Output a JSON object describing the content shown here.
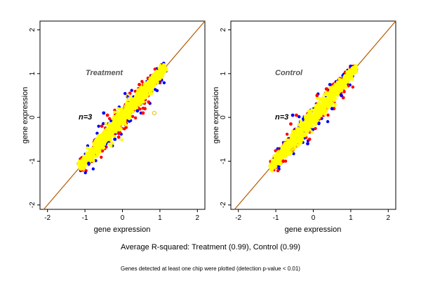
{
  "colors": {
    "background": "#ffffff",
    "diagonal": "#b35900",
    "red": "#ff0000",
    "blue": "#0000ff",
    "yellow": "#ffff00",
    "yellow_outline": "#e6c200"
  },
  "caption": "Average R-squared: Treatment (0.99), Control (0.99)",
  "footnote": "Genes detected at least one chip were plotted (detection p-value < 0.01)",
  "chart_data": [
    {
      "type": "scatter",
      "title": "Treatment",
      "annotation": "n=3",
      "xlabel": "gene expression",
      "ylabel": "gene expression",
      "xlim": [
        -2.2,
        2.2
      ],
      "ylim": [
        -2.1,
        2.2
      ],
      "xticks": [
        -2,
        -1,
        0,
        1,
        2
      ],
      "yticks": [
        -2,
        -1,
        0,
        1,
        2
      ],
      "reference_line": "y = x",
      "point_cloud": {
        "x_range": [
          -1.15,
          1.15
        ],
        "spread_sd": 0.14,
        "outlier_colors": [
          "red",
          "blue"
        ],
        "main_color": "yellow"
      },
      "series": [
        {
          "color": "yellow",
          "points": [
            [
              -1.1,
              -1.12
            ],
            [
              -0.9,
              -0.85
            ],
            [
              -0.6,
              -0.62
            ],
            [
              -0.3,
              -0.28
            ],
            [
              0,
              0.02
            ],
            [
              0.3,
              0.31
            ],
            [
              0.6,
              0.58
            ],
            [
              0.9,
              0.92
            ],
            [
              1.1,
              1.12
            ]
          ]
        },
        {
          "color": "red",
          "points": [
            [
              -0.55,
              -0.2
            ],
            [
              -0.4,
              0.05
            ],
            [
              0.6,
              0.2
            ],
            [
              0.45,
              0.75
            ],
            [
              0.2,
              0.55
            ],
            [
              -0.1,
              -0.45
            ],
            [
              0.7,
              0.35
            ],
            [
              0.55,
              0.1
            ]
          ]
        },
        {
          "color": "blue",
          "points": [
            [
              -0.5,
              0.1
            ],
            [
              -0.9,
              -1.05
            ],
            [
              0.4,
              0.15
            ],
            [
              -0.2,
              -0.5
            ]
          ]
        }
      ]
    },
    {
      "type": "scatter",
      "title": "Control",
      "annotation": "n=3",
      "xlabel": "gene expression",
      "ylabel": "gene expression",
      "xlim": [
        -2.2,
        2.2
      ],
      "ylim": [
        -2.1,
        2.2
      ],
      "xticks": [
        -2,
        -1,
        0,
        1,
        2
      ],
      "yticks": [
        -2,
        -1,
        0,
        1,
        2
      ],
      "reference_line": "y = x",
      "point_cloud": {
        "x_range": [
          -1.15,
          1.15
        ],
        "spread_sd": 0.13,
        "outlier_colors": [
          "red",
          "blue"
        ],
        "main_color": "yellow"
      },
      "series": [
        {
          "color": "yellow",
          "points": [
            [
              -1.1,
              -1.1
            ],
            [
              -0.9,
              -0.88
            ],
            [
              -0.6,
              -0.6
            ],
            [
              -0.3,
              -0.3
            ],
            [
              0,
              0.01
            ],
            [
              0.3,
              0.3
            ],
            [
              0.6,
              0.6
            ],
            [
              0.9,
              0.9
            ],
            [
              1.1,
              1.1
            ]
          ]
        },
        {
          "color": "red",
          "points": [
            [
              -0.6,
              -0.15
            ],
            [
              -0.45,
              0.05
            ],
            [
              0.55,
              0.2
            ],
            [
              0.35,
              0.65
            ],
            [
              0.1,
              0.5
            ],
            [
              -0.1,
              -0.5
            ],
            [
              0.8,
              0.45
            ],
            [
              -0.8,
              -1.0
            ]
          ]
        },
        {
          "color": "blue",
          "points": [
            [
              -0.55,
              0.05
            ],
            [
              -0.15,
              -0.6
            ],
            [
              0.75,
              0.5
            ],
            [
              0.5,
              0.2
            ]
          ]
        }
      ]
    }
  ]
}
